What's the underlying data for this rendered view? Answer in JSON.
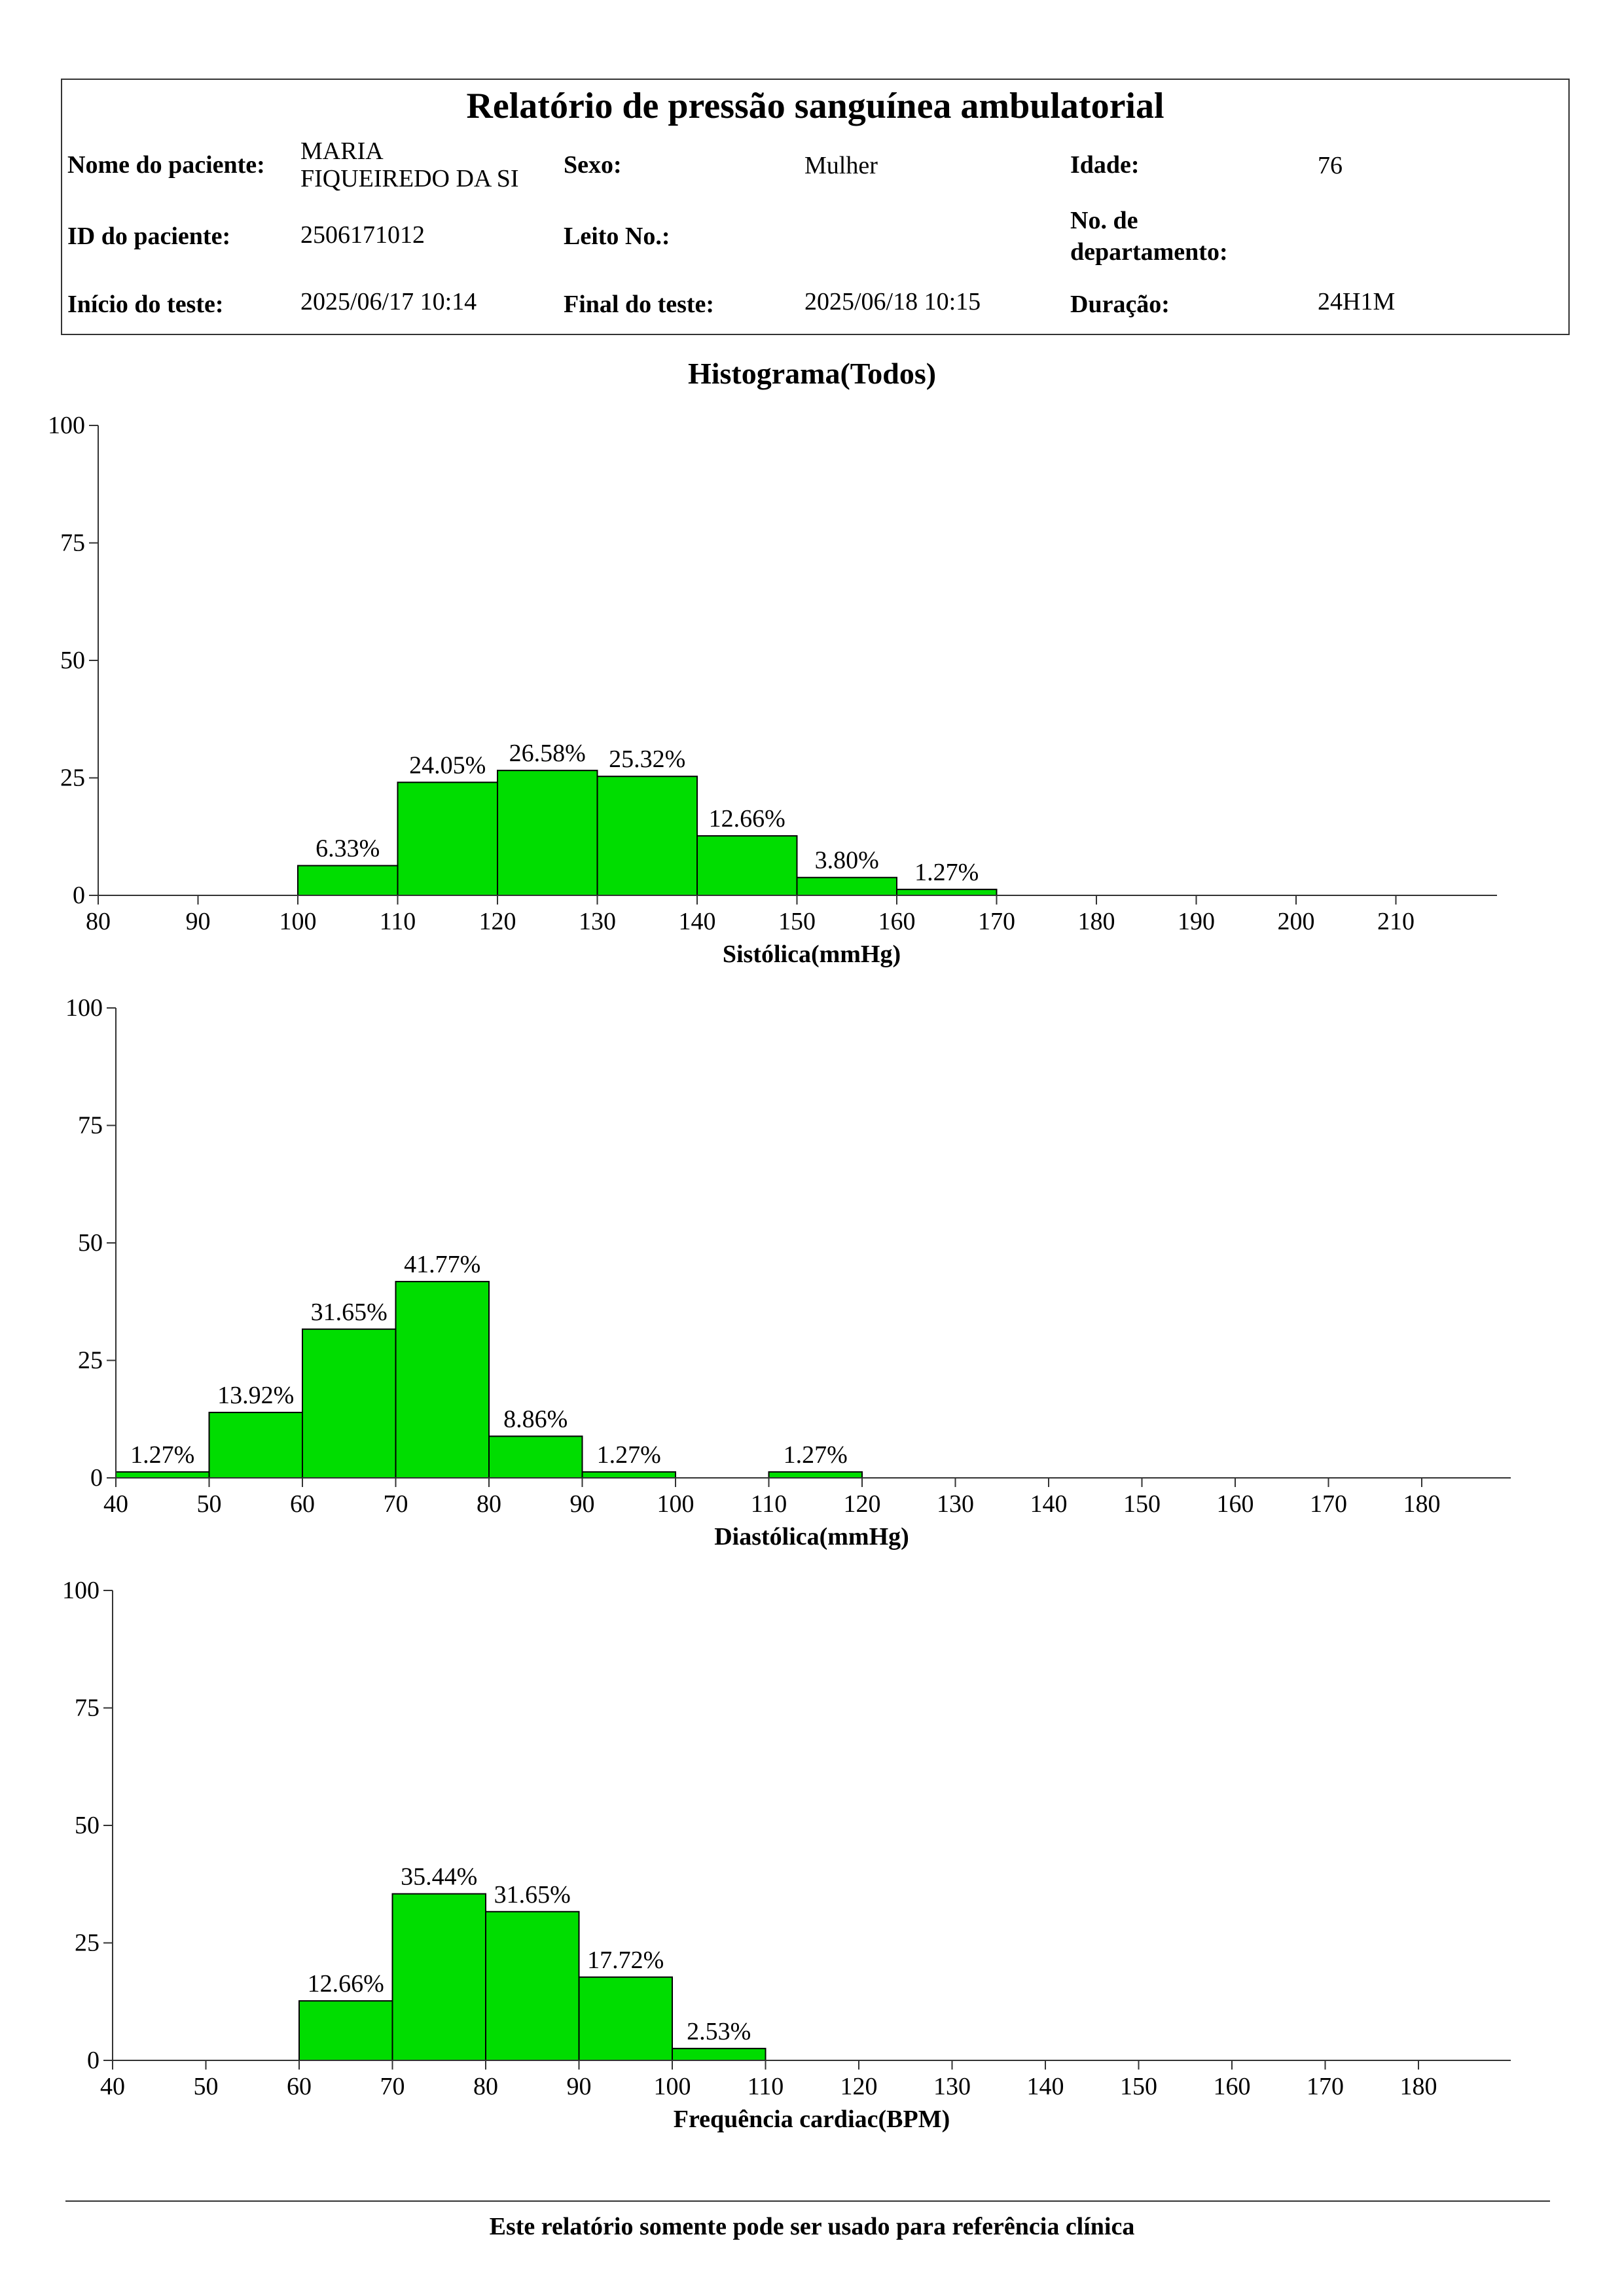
{
  "header": {
    "title": "Relatório de pressão sanguínea ambulatorial",
    "patient_name_label": "Nome do paciente:",
    "patient_name_line1": "MARIA",
    "patient_name_line2": "FIQUEIREDO  DA SI",
    "sex_label": "Sexo:",
    "sex_value": "Mulher",
    "age_label": "Idade:",
    "age_value": "76",
    "patient_id_label": "ID do paciente:",
    "patient_id_value": "2506171012",
    "bed_label": "Leito No.:",
    "bed_value": "",
    "dept_label_line1": "No. de",
    "dept_label_line2": "departamento:",
    "dept_value": "",
    "start_label": "Início do teste:",
    "start_value": "2025/06/17 10:14",
    "end_label": "Final do teste:",
    "end_value": "2025/06/18 10:15",
    "duration_label": "Duração:",
    "duration_value": "24H1M"
  },
  "histogram_title": "Histograma(Todos)",
  "chart_data": [
    {
      "type": "bar",
      "name": "systolic",
      "xlabel": "Sistólica(mmHg)",
      "ylabel": "",
      "xlim": [
        80,
        220
      ],
      "ylim": [
        0,
        100
      ],
      "xticks": [
        80,
        90,
        100,
        110,
        120,
        130,
        140,
        150,
        160,
        170,
        180,
        190,
        200,
        210
      ],
      "yticks": [
        0,
        25,
        50,
        75,
        100
      ],
      "bars": [
        {
          "x0": 100,
          "x1": 110,
          "value": 6.33,
          "label": "6.33%"
        },
        {
          "x0": 110,
          "x1": 120,
          "value": 24.05,
          "label": "24.05%"
        },
        {
          "x0": 120,
          "x1": 130,
          "value": 26.58,
          "label": "26.58%"
        },
        {
          "x0": 130,
          "x1": 140,
          "value": 25.32,
          "label": "25.32%"
        },
        {
          "x0": 140,
          "x1": 150,
          "value": 12.66,
          "label": "12.66%"
        },
        {
          "x0": 150,
          "x1": 160,
          "value": 3.8,
          "label": "3.80%"
        },
        {
          "x0": 160,
          "x1": 170,
          "value": 1.27,
          "label": "1.27%"
        }
      ],
      "bar_color": "#00dd00",
      "grid": false,
      "legend": "none"
    },
    {
      "type": "bar",
      "name": "diastolic",
      "xlabel": "Diastólica(mmHg)",
      "ylabel": "",
      "xlim": [
        40,
        190
      ],
      "ylim": [
        0,
        100
      ],
      "xticks": [
        40,
        50,
        60,
        70,
        80,
        90,
        100,
        110,
        120,
        130,
        140,
        150,
        160,
        170,
        180
      ],
      "yticks": [
        0,
        25,
        50,
        75,
        100
      ],
      "bars": [
        {
          "x0": 40,
          "x1": 50,
          "value": 1.27,
          "label": "1.27%"
        },
        {
          "x0": 50,
          "x1": 60,
          "value": 13.92,
          "label": "13.92%"
        },
        {
          "x0": 60,
          "x1": 70,
          "value": 31.65,
          "label": "31.65%"
        },
        {
          "x0": 70,
          "x1": 80,
          "value": 41.77,
          "label": "41.77%"
        },
        {
          "x0": 80,
          "x1": 90,
          "value": 8.86,
          "label": "8.86%"
        },
        {
          "x0": 90,
          "x1": 100,
          "value": 1.27,
          "label": "1.27%"
        },
        {
          "x0": 110,
          "x1": 120,
          "value": 1.27,
          "label": "1.27%"
        }
      ],
      "bar_color": "#00dd00",
      "grid": false,
      "legend": "none"
    },
    {
      "type": "bar",
      "name": "heart-rate",
      "xlabel": "Frequência cardiac(BPM)",
      "ylabel": "",
      "xlim": [
        40,
        190
      ],
      "ylim": [
        0,
        100
      ],
      "xticks": [
        40,
        50,
        60,
        70,
        80,
        90,
        100,
        110,
        120,
        130,
        140,
        150,
        160,
        170,
        180
      ],
      "yticks": [
        0,
        25,
        50,
        75,
        100
      ],
      "bars": [
        {
          "x0": 60,
          "x1": 70,
          "value": 12.66,
          "label": "12.66%"
        },
        {
          "x0": 70,
          "x1": 80,
          "value": 35.44,
          "label": "35.44%"
        },
        {
          "x0": 80,
          "x1": 90,
          "value": 31.65,
          "label": "31.65%"
        },
        {
          "x0": 90,
          "x1": 100,
          "value": 17.72,
          "label": "17.72%"
        },
        {
          "x0": 100,
          "x1": 110,
          "value": 2.53,
          "label": "2.53%"
        }
      ],
      "bar_color": "#00dd00",
      "grid": false,
      "legend": "none"
    }
  ],
  "footer": {
    "text": "Este relatório somente pode ser usado para referência clínica"
  }
}
